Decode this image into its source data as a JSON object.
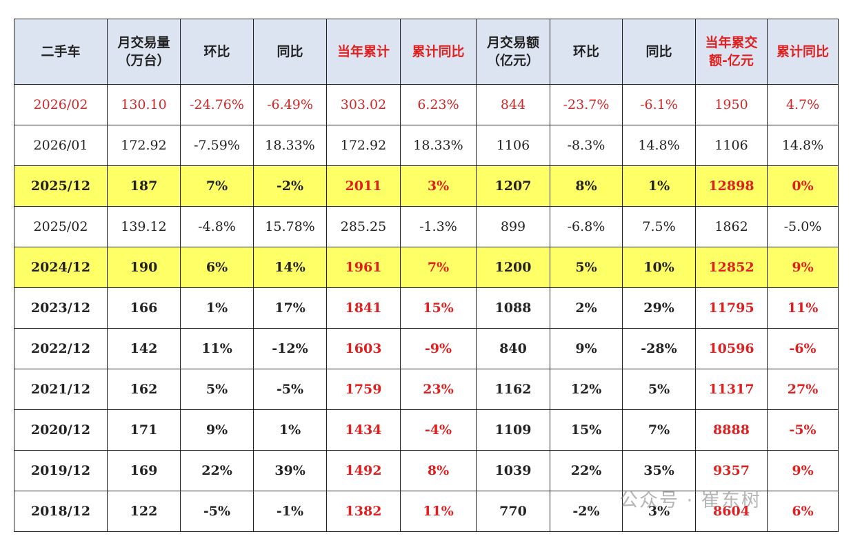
{
  "table": {
    "header": [
      [
        "二手车"
      ],
      [
        "月交易量",
        "（万台）"
      ],
      [
        "环比"
      ],
      [
        "同比"
      ],
      [
        "当年累计"
      ],
      [
        "累计同比"
      ],
      [
        "月交易额",
        "（亿元）"
      ],
      [
        "环比"
      ],
      [
        "同比"
      ],
      [
        "当年累交",
        "额-亿元"
      ],
      [
        "累计同比"
      ]
    ],
    "rows": [
      [
        "2026/02",
        "130.10",
        "-24.76%",
        "-6.49%",
        "303.02",
        "6.23%",
        "844",
        "-23.7%",
        "-6.1%",
        "1950",
        "4.7%"
      ],
      [
        "2026/01",
        "172.92",
        "-7.59%",
        "18.33%",
        "172.92",
        "18.33%",
        "1106",
        "-8.3%",
        "14.8%",
        "1106",
        "14.8%"
      ],
      [
        "2025/12",
        "187",
        "7%",
        "-2%",
        "2011",
        "3%",
        "1207",
        "8%",
        "1%",
        "12898",
        "0%"
      ],
      [
        "2025/02",
        "139.12",
        "-4.8%",
        "15.78%",
        "285.25",
        "-1.3%",
        "899",
        "-6.8%",
        "7.5%",
        "1862",
        "-5.0%"
      ],
      [
        "2024/12",
        "190",
        "6%",
        "14%",
        "1961",
        "7%",
        "1200",
        "5%",
        "10%",
        "12852",
        "9%"
      ],
      [
        "2023/12",
        "166",
        "1%",
        "17%",
        "1841",
        "15%",
        "1088",
        "2%",
        "29%",
        "11795",
        "11%"
      ],
      [
        "2022/12",
        "142",
        "11%",
        "-12%",
        "1603",
        "-9%",
        "840",
        "9%",
        "-28%",
        "10596",
        "-6%"
      ],
      [
        "2021/12",
        "162",
        "5%",
        "-5%",
        "1759",
        "23%",
        "1162",
        "12%",
        "5%",
        "11317",
        "27%"
      ],
      [
        "2020/12",
        "171",
        "9%",
        "1%",
        "1434",
        "-4%",
        "1109",
        "15%",
        "7%",
        "8888",
        "-5%"
      ],
      [
        "2019/12",
        "169",
        "22%",
        "39%",
        "1492",
        "8%",
        "1039",
        "22%",
        "35%",
        "9357",
        "9%"
      ],
      [
        "2018/12",
        "122",
        "-5%",
        "-1%",
        "1382",
        "11%",
        "770",
        "-2%",
        "3%",
        "8604",
        "6%"
      ]
    ]
  },
  "watermark": "公众号 · 崔东树"
}
